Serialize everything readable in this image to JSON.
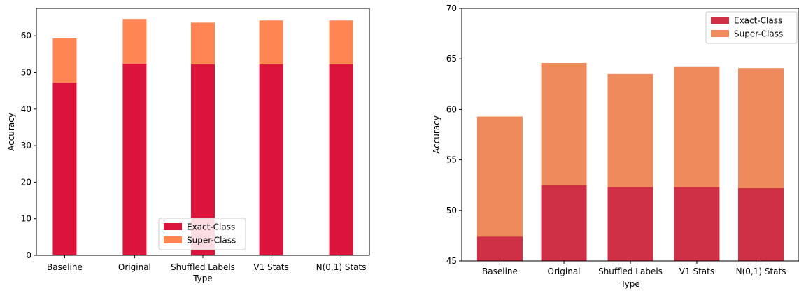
{
  "chart_data": [
    {
      "type": "bar",
      "stacked": true,
      "categories": [
        "Baseline",
        "Original",
        "Shuffled Labels",
        "V1 Stats",
        "N(0,1) Stats"
      ],
      "series": [
        {
          "name": "Exact-Class",
          "values": [
            47.2,
            52.4,
            52.2,
            52.2,
            52.2
          ],
          "color": "#dc143c"
        },
        {
          "name": "Super-Class",
          "values": [
            12.1,
            12.2,
            11.4,
            12.0,
            12.0
          ],
          "color": "#ff8552"
        }
      ],
      "xlabel": "Type",
      "ylabel": "Accuracy",
      "ylim": [
        0,
        67.5
      ],
      "yticks": [
        "0",
        "10",
        "20",
        "30",
        "40",
        "50",
        "60"
      ],
      "grid": false,
      "legend_position": "bottom-center"
    },
    {
      "type": "bar",
      "stacked": false,
      "categories": [
        "Baseline",
        "Original",
        "Shuffled Labels",
        "V1 Stats",
        "N(0,1) Stats"
      ],
      "series": [
        {
          "name": "Super-Class",
          "values": [
            59.3,
            64.6,
            63.5,
            64.2,
            64.1
          ],
          "color": "#ef8a5c"
        },
        {
          "name": "Exact-Class",
          "values": [
            47.4,
            52.5,
            52.3,
            52.3,
            52.2
          ],
          "color": "#cf3045"
        }
      ],
      "legend_order": [
        "Exact-Class",
        "Super-Class"
      ],
      "xlabel": "Type",
      "ylabel": "Accuracy",
      "ylim": [
        45,
        70
      ],
      "yticks": [
        "45",
        "50",
        "55",
        "60",
        "65",
        "70"
      ],
      "grid": false,
      "legend_position": "top-right"
    }
  ]
}
